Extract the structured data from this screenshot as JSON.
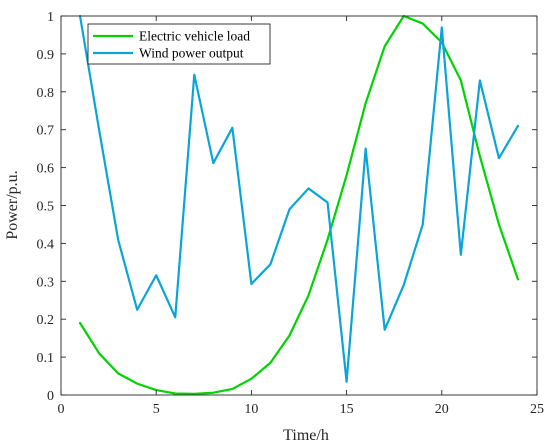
{
  "chart_data": {
    "type": "line",
    "title": "",
    "xlabel": "Time/h",
    "ylabel": "Power/p.u.",
    "xlim": [
      0,
      25
    ],
    "ylim": [
      0,
      1
    ],
    "xticks": [
      0,
      5,
      10,
      15,
      20,
      25
    ],
    "yticks": [
      0,
      0.1,
      0.2,
      0.3,
      0.4,
      0.5,
      0.6,
      0.7,
      0.8,
      0.9,
      1
    ],
    "xtick_labels": [
      "0",
      "5",
      "10",
      "15",
      "20",
      "25"
    ],
    "ytick_labels": [
      "0",
      "0.1",
      "0.2",
      "0.3",
      "0.4",
      "0.5",
      "0.6",
      "0.7",
      "0.8",
      "0.9",
      "1"
    ],
    "grid": false,
    "legend_position": "top-left",
    "x": [
      1,
      2,
      3,
      4,
      5,
      6,
      7,
      8,
      9,
      10,
      11,
      12,
      13,
      14,
      15,
      16,
      17,
      18,
      19,
      20,
      21,
      22,
      23,
      24
    ],
    "series": [
      {
        "name": "Electric vehicle load",
        "color": "#00d400",
        "values": [
          0.19,
          0.11,
          0.057,
          0.03,
          0.013,
          0.004,
          0.003,
          0.006,
          0.016,
          0.043,
          0.085,
          0.157,
          0.263,
          0.41,
          0.58,
          0.77,
          0.92,
          1.0,
          0.98,
          0.93,
          0.83,
          0.63,
          0.45,
          0.305
        ]
      },
      {
        "name": "Wind power output",
        "color": "#0aa5d8",
        "values": [
          1.0,
          0.7,
          0.41,
          0.225,
          0.316,
          0.205,
          0.845,
          0.612,
          0.705,
          0.293,
          0.345,
          0.49,
          0.545,
          0.508,
          0.035,
          0.65,
          0.172,
          0.29,
          0.45,
          0.97,
          0.37,
          0.83,
          0.625,
          0.71
        ]
      }
    ]
  }
}
